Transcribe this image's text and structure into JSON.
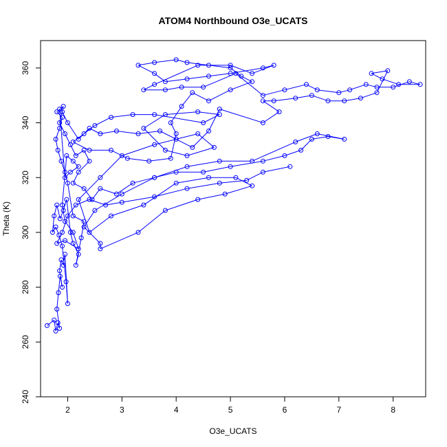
{
  "chart_data": {
    "type": "scatter",
    "title": "ATOM4 Northbound O3e_UCATS",
    "xlabel": "O3e_UCATS",
    "ylabel": "Theta (K)",
    "xlim": [
      1.5,
      8.6
    ],
    "ylim": [
      240,
      370
    ],
    "xticks": [
      2,
      3,
      4,
      5,
      6,
      7,
      8
    ],
    "yticks": [
      240,
      260,
      280,
      300,
      320,
      340,
      360
    ],
    "grid": false,
    "legend": "none",
    "color": "#0000ff",
    "series": [
      {
        "points": [
          [
            1.62,
            266
          ],
          [
            1.75,
            268
          ],
          [
            1.78,
            264
          ],
          [
            1.82,
            267
          ],
          [
            1.85,
            265
          ],
          [
            1.8,
            272
          ],
          [
            1.83,
            278
          ],
          [
            1.86,
            284
          ],
          [
            1.9,
            280
          ],
          [
            1.85,
            286
          ],
          [
            1.88,
            290
          ],
          [
            1.92,
            288
          ],
          [
            1.95,
            292
          ],
          [
            2.0,
            274
          ],
          [
            1.97,
            282
          ],
          [
            1.9,
            295
          ],
          [
            1.84,
            299
          ],
          [
            1.78,
            302
          ],
          [
            1.72,
            300
          ],
          [
            1.75,
            306
          ],
          [
            1.8,
            310
          ],
          [
            1.86,
            305
          ],
          [
            1.92,
            308
          ],
          [
            1.98,
            312
          ],
          [
            2.05,
            300
          ],
          [
            2.1,
            296
          ],
          [
            2.2,
            292
          ],
          [
            2.15,
            288
          ],
          [
            2.25,
            298
          ],
          [
            2.3,
            304
          ],
          [
            2.1,
            306
          ],
          [
            2.0,
            318
          ],
          [
            1.95,
            322
          ],
          [
            1.88,
            326
          ],
          [
            1.82,
            330
          ],
          [
            1.78,
            334
          ],
          [
            1.85,
            338
          ],
          [
            1.9,
            342
          ],
          [
            1.8,
            344
          ],
          [
            1.92,
            346
          ],
          [
            1.85,
            340
          ],
          [
            1.95,
            336
          ],
          [
            2.05,
            332
          ],
          [
            2.15,
            328
          ],
          [
            2.3,
            330
          ],
          [
            2.4,
            326
          ],
          [
            2.2,
            322
          ],
          [
            2.1,
            318
          ],
          [
            2.3,
            316
          ],
          [
            2.45,
            312
          ],
          [
            2.6,
            316
          ],
          [
            2.9,
            314
          ],
          [
            3.2,
            318
          ],
          [
            3.6,
            320
          ],
          [
            4.0,
            322
          ],
          [
            4.5,
            322
          ],
          [
            5.0,
            324
          ],
          [
            5.6,
            326
          ],
          [
            6.0,
            328
          ],
          [
            6.3,
            330
          ],
          [
            6.5,
            334
          ],
          [
            6.8,
            335
          ],
          [
            7.1,
            334
          ],
          [
            6.6,
            336
          ],
          [
            6.2,
            333
          ],
          [
            5.4,
            326
          ],
          [
            4.8,
            326
          ],
          [
            4.2,
            324
          ],
          [
            3.6,
            320
          ],
          [
            3.0,
            314
          ],
          [
            2.5,
            308
          ],
          [
            2.3,
            302
          ],
          [
            2.6,
            296
          ],
          [
            2.6,
            294
          ],
          [
            3.3,
            300
          ],
          [
            3.8,
            308
          ],
          [
            4.4,
            312
          ],
          [
            4.9,
            314
          ],
          [
            5.4,
            317
          ],
          [
            5.1,
            320
          ],
          [
            4.6,
            320
          ],
          [
            4.0,
            318
          ],
          [
            3.4,
            310
          ],
          [
            2.8,
            306
          ],
          [
            2.4,
            300
          ],
          [
            2.2,
            312
          ],
          [
            2.6,
            320
          ],
          [
            3.0,
            328
          ],
          [
            3.6,
            332
          ],
          [
            4.0,
            334
          ],
          [
            4.4,
            336
          ],
          [
            4.7,
            331
          ],
          [
            4.2,
            328
          ],
          [
            3.8,
            330
          ],
          [
            3.4,
            338
          ],
          [
            3.8,
            343
          ],
          [
            4.4,
            344
          ],
          [
            4.8,
            343
          ],
          [
            4.5,
            340
          ],
          [
            3.6,
            343
          ],
          [
            3.2,
            343
          ],
          [
            2.8,
            342
          ],
          [
            2.5,
            339
          ],
          [
            2.3,
            336
          ],
          [
            2.1,
            333
          ],
          [
            2.4,
            330
          ],
          [
            2.8,
            330
          ],
          [
            3.1,
            327
          ],
          [
            3.5,
            326
          ],
          [
            3.9,
            327
          ],
          [
            4.0,
            336
          ],
          [
            3.9,
            340
          ],
          [
            4.1,
            346
          ],
          [
            4.3,
            351
          ],
          [
            4.6,
            348
          ],
          [
            5.0,
            352
          ],
          [
            5.4,
            355
          ],
          [
            5.2,
            357
          ],
          [
            5.0,
            360
          ],
          [
            4.6,
            361
          ],
          [
            4.2,
            362
          ],
          [
            4.0,
            363
          ],
          [
            3.6,
            362
          ],
          [
            3.3,
            361
          ],
          [
            3.6,
            358
          ],
          [
            3.8,
            355
          ],
          [
            4.2,
            356
          ],
          [
            4.6,
            357
          ],
          [
            5.0,
            358
          ],
          [
            5.6,
            360
          ],
          [
            5.8,
            361
          ],
          [
            5.4,
            358
          ],
          [
            5.0,
            361
          ],
          [
            4.4,
            361
          ],
          [
            3.6,
            354
          ],
          [
            3.4,
            352
          ],
          [
            3.8,
            352
          ],
          [
            4.1,
            353
          ],
          [
            4.5,
            353
          ],
          [
            5.1,
            358
          ],
          [
            5.6,
            350
          ],
          [
            6.0,
            352
          ],
          [
            6.4,
            354
          ],
          [
            6.6,
            352
          ],
          [
            7.0,
            351
          ],
          [
            7.2,
            352
          ],
          [
            7.5,
            354
          ],
          [
            7.7,
            353
          ],
          [
            8.0,
            353
          ],
          [
            8.3,
            355
          ],
          [
            8.5,
            354
          ],
          [
            8.1,
            354
          ],
          [
            7.8,
            356
          ],
          [
            7.6,
            358
          ],
          [
            7.9,
            359
          ],
          [
            7.7,
            351
          ],
          [
            7.4,
            349
          ],
          [
            7.1,
            348
          ],
          [
            6.8,
            348
          ],
          [
            6.5,
            350
          ],
          [
            6.2,
            349
          ],
          [
            5.8,
            348
          ],
          [
            5.6,
            348
          ],
          [
            5.9,
            344
          ],
          [
            5.6,
            340
          ],
          [
            4.8,
            345
          ],
          [
            4.6,
            337
          ],
          [
            4.3,
            331
          ],
          [
            3.7,
            337
          ],
          [
            3.3,
            336
          ],
          [
            2.9,
            337
          ],
          [
            2.6,
            336
          ],
          [
            2.4,
            338
          ],
          [
            2.2,
            334
          ],
          [
            2.0,
            340
          ],
          [
            1.9,
            344
          ],
          [
            1.85,
            345
          ],
          [
            1.95,
            320
          ],
          [
            2.05,
            322
          ],
          [
            2.2,
            324
          ],
          [
            2.1,
            326
          ],
          [
            1.98,
            328
          ],
          [
            1.9,
            310
          ],
          [
            1.95,
            304
          ],
          [
            2.1,
            300
          ],
          [
            2.2,
            294
          ],
          [
            1.95,
            297
          ],
          [
            1.8,
            296
          ],
          [
            1.9,
            300
          ],
          [
            2.0,
            306
          ],
          [
            2.15,
            310
          ],
          [
            2.4,
            312
          ],
          [
            2.7,
            310
          ],
          [
            3.0,
            311
          ],
          [
            3.6,
            313
          ],
          [
            4.2,
            316
          ],
          [
            4.8,
            318
          ],
          [
            5.3,
            319
          ],
          [
            5.6,
            322
          ],
          [
            6.1,
            324
          ]
        ]
      }
    ]
  }
}
